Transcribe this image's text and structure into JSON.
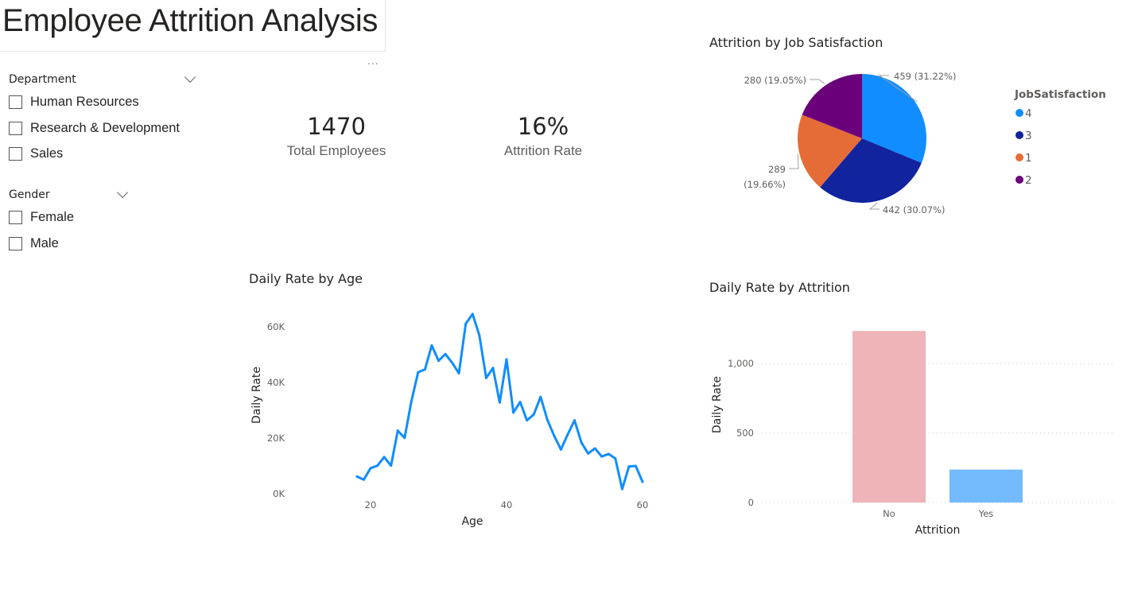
{
  "header": {
    "title": "Employee Attrition Analysis",
    "more_options": "..."
  },
  "slicers": [
    {
      "title": "Department",
      "options": [
        "Human Resources",
        "Research & Development",
        "Sales"
      ]
    },
    {
      "title": "Gender",
      "options": [
        "Female",
        "Male"
      ]
    }
  ],
  "kpis": [
    {
      "value": "1470",
      "label": "Total Employees"
    },
    {
      "value": "16%",
      "label": "Attrition Rate"
    }
  ],
  "colors": {
    "line": "#118dff",
    "no_bar": "#eeb4b8",
    "yes_bar": "#73bafe",
    "text": "#252423",
    "muted": "#605e5c"
  },
  "chart_data": [
    {
      "type": "pie",
      "title": "Attrition by Job Satisfaction",
      "legend_title": "JobSatisfaction",
      "legend_position": "right",
      "slices": [
        {
          "label": "4",
          "value": 459,
          "percent": "31.22%",
          "data_label": "459 (31.22%)",
          "color": "#118dff"
        },
        {
          "label": "3",
          "value": 442,
          "percent": "30.07%",
          "data_label": "442 (30.07%)",
          "color": "#12239e"
        },
        {
          "label": "1",
          "value": 289,
          "percent": "19.66%",
          "data_label_line1": "289",
          "data_label_line2": "(19.66%)",
          "color": "#e66c37"
        },
        {
          "label": "2",
          "value": 280,
          "percent": "19.05%",
          "data_label": "280 (19.05%)",
          "color": "#6b007b"
        }
      ]
    },
    {
      "type": "line",
      "title": "Daily Rate by Age",
      "xlabel": "Age",
      "ylabel": "Daily Rate",
      "xlim": [
        18,
        60
      ],
      "ylim": [
        0,
        66000
      ],
      "x_ticks": [
        20,
        40,
        60
      ],
      "x_tick_labels": [
        "20",
        "40",
        "60"
      ],
      "y_ticks": [
        0,
        20000,
        40000,
        60000
      ],
      "y_tick_labels": [
        "0K",
        "20K",
        "40K",
        "60K"
      ],
      "grid": false,
      "x": [
        18,
        19,
        20,
        21,
        22,
        23,
        24,
        25,
        26,
        27,
        28,
        29,
        30,
        31,
        32,
        33,
        34,
        35,
        36,
        37,
        38,
        39,
        40,
        41,
        42,
        43,
        44,
        45,
        46,
        47,
        48,
        49,
        50,
        51,
        52,
        53,
        54,
        55,
        56,
        57,
        58,
        59,
        60
      ],
      "y": [
        6200,
        5100,
        9200,
        10100,
        13200,
        10100,
        22700,
        20100,
        33200,
        43700,
        44700,
        53300,
        47800,
        50200,
        47100,
        43300,
        61100,
        64600,
        56900,
        41600,
        45200,
        32800,
        48300,
        29200,
        33000,
        26400,
        28500,
        34800,
        26600,
        20800,
        15900,
        21300,
        26400,
        18400,
        14500,
        16300,
        13400,
        14300,
        12700,
        1700,
        9800,
        10000,
        4300
      ]
    },
    {
      "type": "bar",
      "title": "Daily Rate by Attrition",
      "xlabel": "Attrition",
      "ylabel": "Daily Rate",
      "categories": [
        "No",
        "Yes"
      ],
      "values": [
        1233,
        237
      ],
      "ylim": [
        0,
        1250
      ],
      "y_ticks": [
        0,
        500,
        1000
      ],
      "y_tick_labels": [
        "0",
        "500",
        "1,000"
      ],
      "grid": true
    }
  ]
}
